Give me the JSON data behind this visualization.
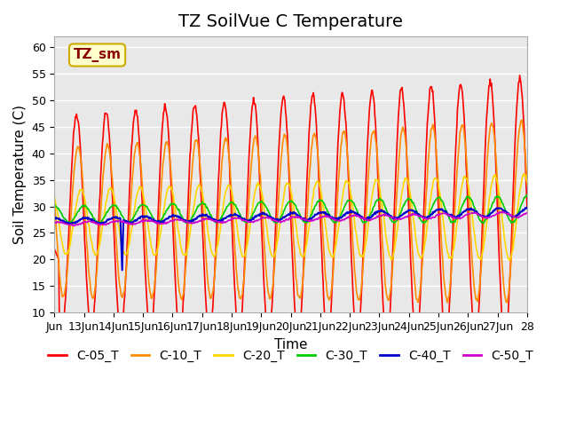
{
  "title": "TZ SoilVue C Temperature",
  "ylabel": "Soil Temperature (C)",
  "xlabel": "Time",
  "annotation_text": "TZ_sm",
  "annotation_color": "#8B0000",
  "annotation_bg": "#FFFFCC",
  "annotation_border": "#CCAA00",
  "ylim": [
    10,
    62
  ],
  "yticks": [
    10,
    15,
    20,
    25,
    30,
    35,
    40,
    45,
    50,
    55,
    60
  ],
  "xtick_labels": [
    "Jun",
    "13Jun",
    "14Jun",
    "15Jun",
    "16Jun",
    "17Jun",
    "18Jun",
    "19Jun",
    "20Jun",
    "21Jun",
    "22Jun",
    "23Jun",
    "24Jun",
    "25Jun",
    "26Jun",
    "27Jun",
    "28"
  ],
  "series_colors": {
    "C-05_T": "#FF0000",
    "C-10_T": "#FF8C00",
    "C-20_T": "#FFD700",
    "C-30_T": "#00CC00",
    "C-40_T": "#0000CC",
    "C-50_T": "#CC00CC"
  },
  "bg_color": "#E8E8E8",
  "grid_color": "#FFFFFF",
  "title_fontsize": 14,
  "label_fontsize": 11,
  "tick_fontsize": 9,
  "legend_fontsize": 10
}
